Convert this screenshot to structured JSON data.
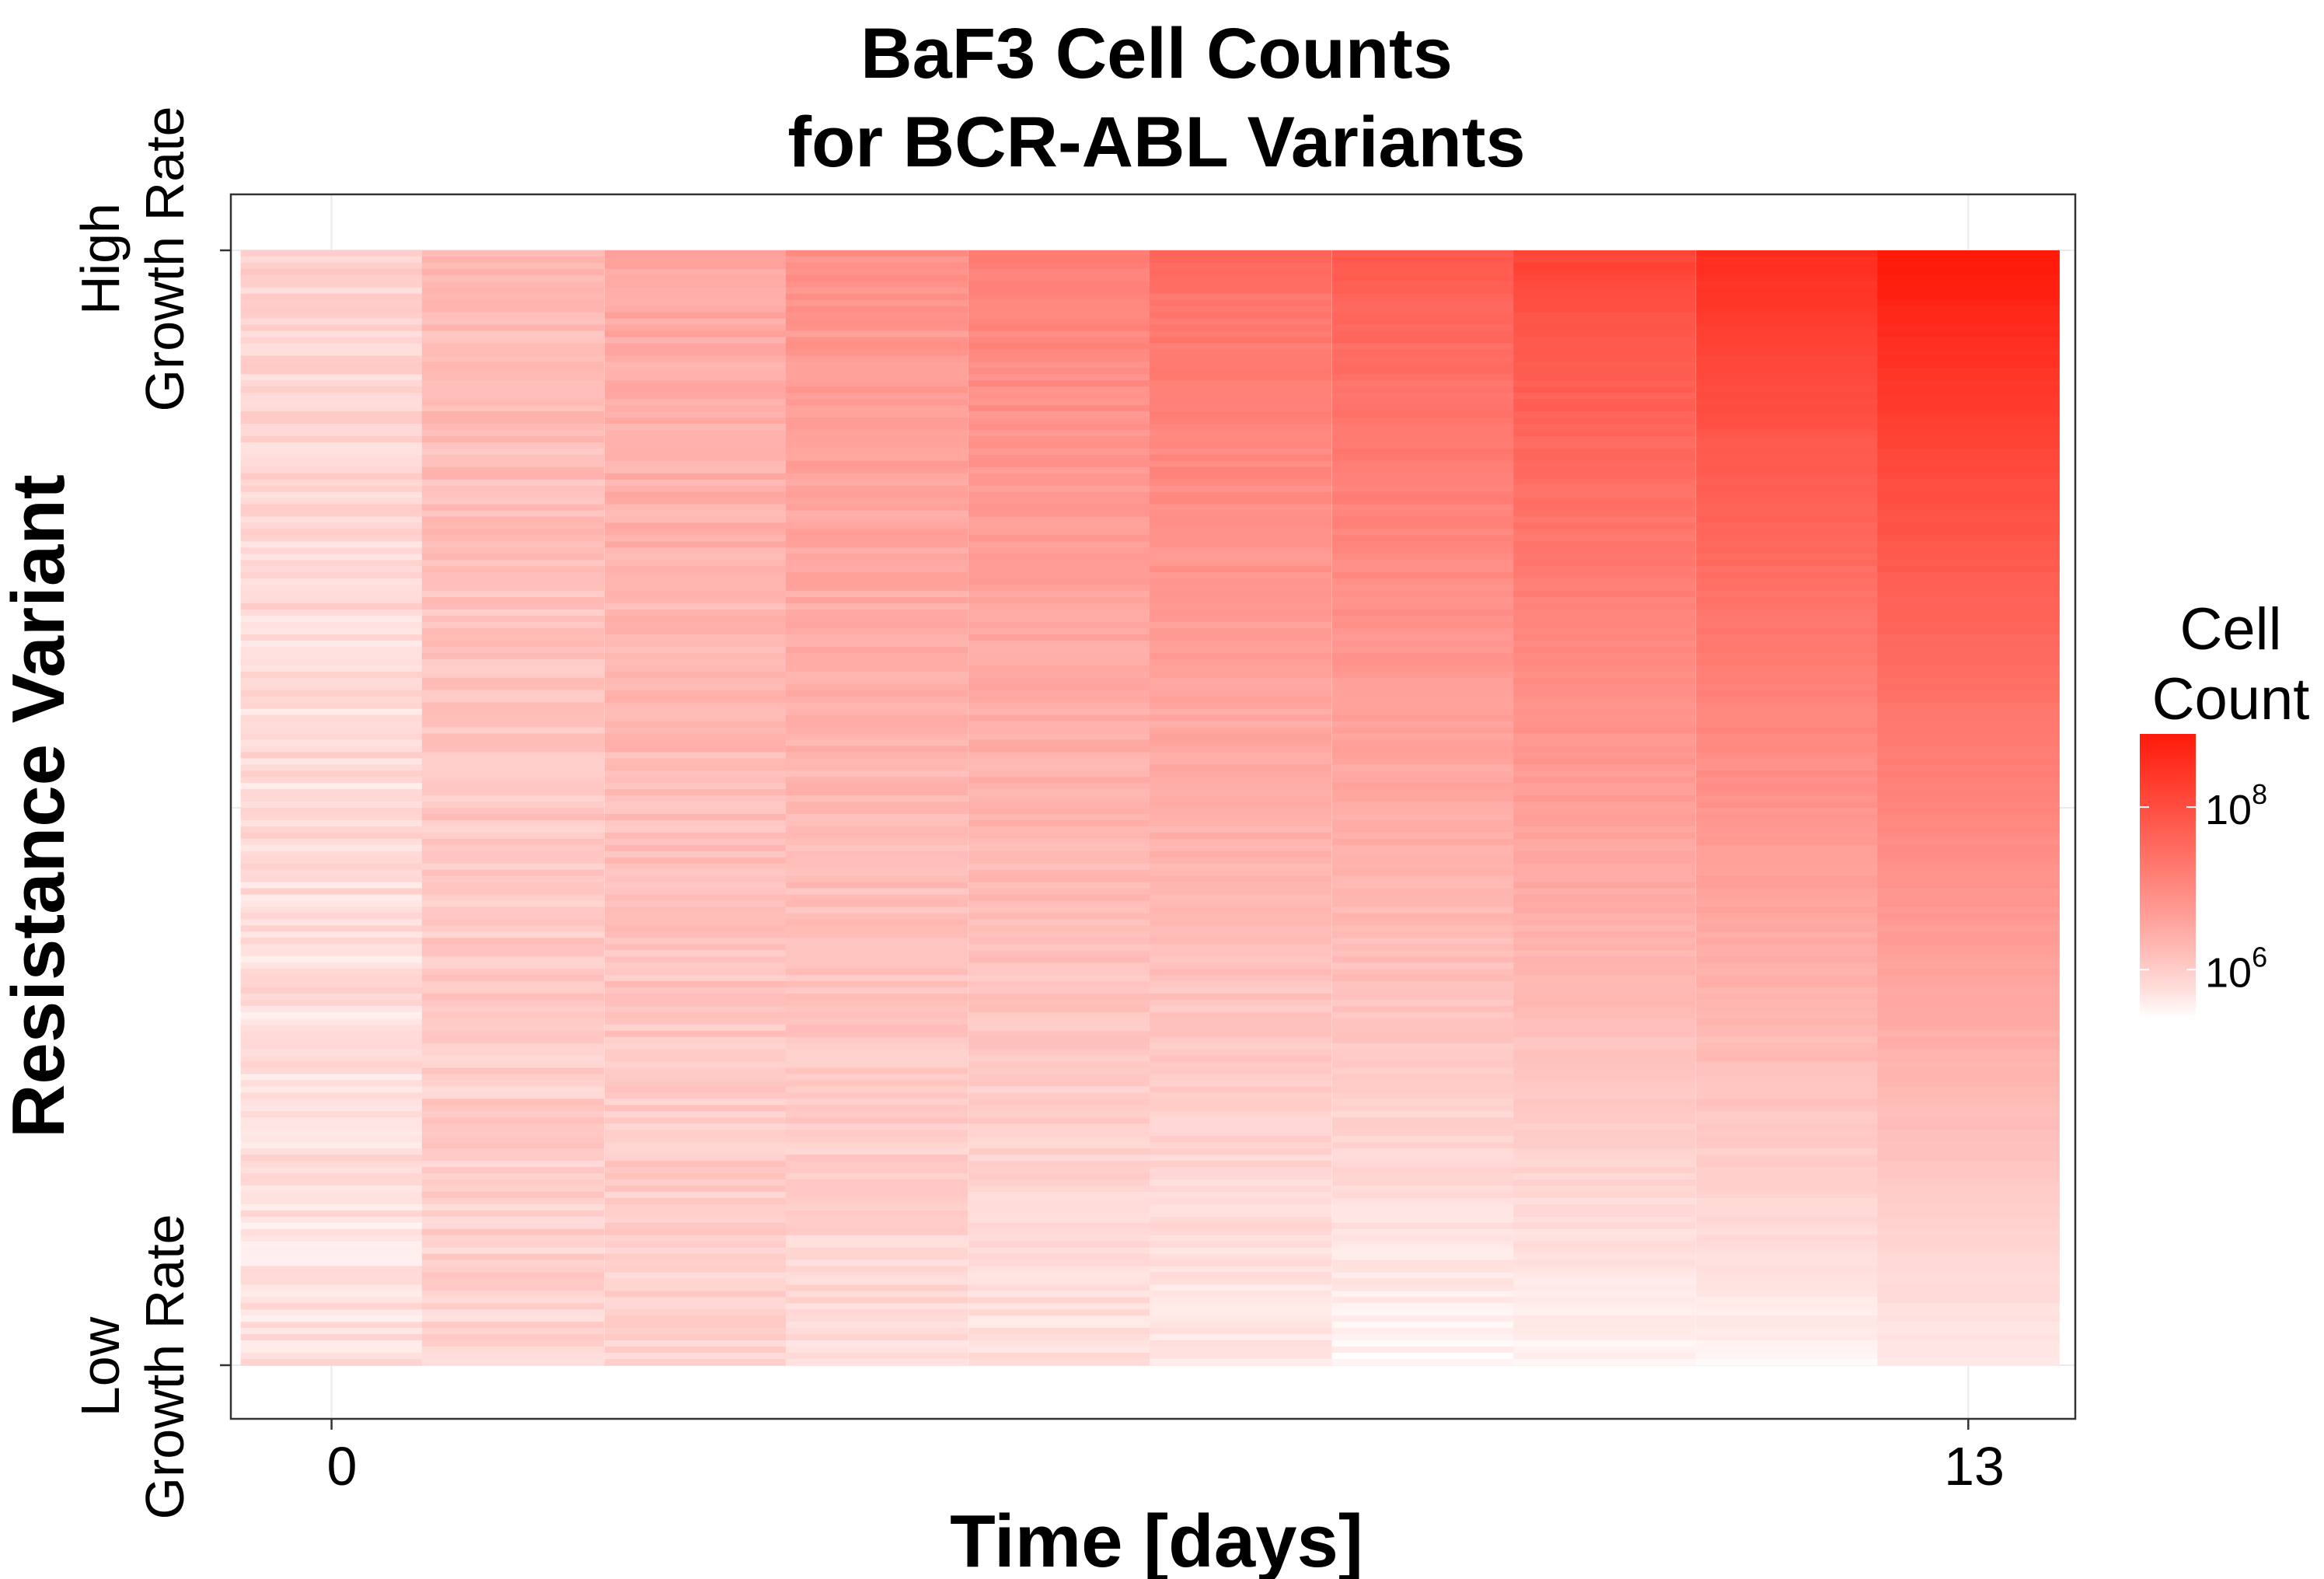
{
  "chart_data": {
    "type": "heatmap",
    "title_lines": [
      "BaF3 Cell Counts",
      "for BCR-ABL Variants"
    ],
    "xlabel": "Time [days]",
    "ylabel": "Resistance Variant",
    "x_ticks": [
      0,
      13
    ],
    "x_tick_labels": [
      "0",
      "13"
    ],
    "xlim": [
      -0.8,
      13.85
    ],
    "y_category_labels": {
      "top": [
        "High",
        "Growth Rate"
      ],
      "bottom": [
        "Low",
        "Growth Rate"
      ]
    },
    "y_ordering": "variants sorted from high growth rate (top) to low growth rate (bottom)",
    "n_variants": 180,
    "columns": [
      {
        "day": 0.0,
        "median_log10_count": 5.8
      },
      {
        "day": 1.44,
        "median_log10_count": 6.05
      },
      {
        "day": 2.89,
        "median_log10_count": 6.25
      },
      {
        "day": 4.33,
        "median_log10_count": 6.45
      },
      {
        "day": 5.78,
        "median_log10_count": 6.65
      },
      {
        "day": 7.22,
        "median_log10_count": 6.9
      },
      {
        "day": 8.67,
        "median_log10_count": 7.2
      },
      {
        "day": 10.11,
        "median_log10_count": 7.55
      },
      {
        "day": 11.56,
        "median_log10_count": 7.95
      },
      {
        "day": 13.0,
        "median_log10_count": 8.3
      }
    ],
    "top_row_log10_counts": [
      5.9,
      6.3,
      6.6,
      6.9,
      7.2,
      7.5,
      7.8,
      8.2,
      8.6,
      9.0
    ],
    "bottom_row_log10_counts": [
      5.7,
      5.9,
      5.9,
      5.8,
      5.7,
      5.6,
      5.5,
      5.5,
      5.5,
      5.6
    ],
    "legend": {
      "title_lines": [
        "Cell",
        "Count"
      ],
      "scale": "log10",
      "breaks": [
        {
          "base": "10",
          "exponent": "8",
          "log10_value": 8
        },
        {
          "base": "10",
          "exponent": "6",
          "log10_value": 6
        }
      ],
      "range_log10": [
        5.4,
        8.9
      ],
      "low_color": "#ffffff",
      "high_color": "#ff1a0a"
    },
    "grid": true,
    "panel_border": true,
    "legend_position": "right"
  }
}
